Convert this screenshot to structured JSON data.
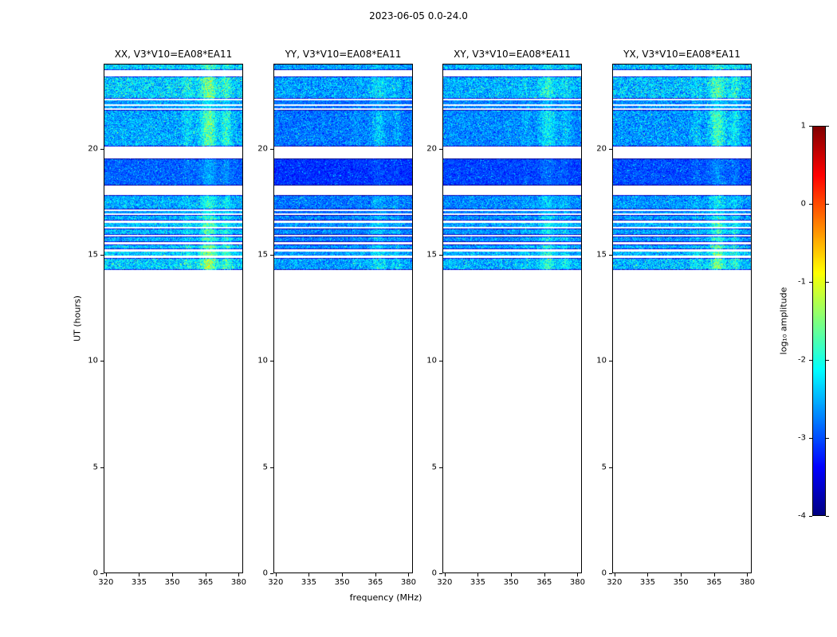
{
  "figure": {
    "title": "2023-06-05 0.0-24.0"
  },
  "chart_data": {
    "type": "heatmap",
    "title": "2023-06-05 0.0-24.0",
    "xlabel": "frequency (MHz)",
    "ylabel": "UT (hours)",
    "xlim": [
      319,
      382
    ],
    "ylim": [
      0,
      24
    ],
    "xticks": [
      320,
      335,
      350,
      365,
      380
    ],
    "yticks": [
      0,
      5,
      10,
      15,
      20
    ],
    "panels": [
      {
        "title": "XX, V3*V10=EA08*EA11",
        "seed": 101,
        "level_offset": 0.1,
        "noise_scale": 1.0,
        "feature_scale": 1.0
      },
      {
        "title": "YY, V3*V10=EA08*EA11",
        "seed": 202,
        "level_offset": -0.15,
        "noise_scale": 0.85,
        "feature_scale": 0.45
      },
      {
        "title": "XY, V3*V10=EA08*EA11",
        "seed": 303,
        "level_offset": -0.05,
        "noise_scale": 0.9,
        "feature_scale": 0.6
      },
      {
        "title": "YX, V3*V10=EA08*EA11",
        "seed": 404,
        "level_offset": 0.0,
        "noise_scale": 1.0,
        "feature_scale": 0.9
      }
    ],
    "time_bands": [
      {
        "t0": 23.7,
        "t1": 24.0,
        "level": -2.45,
        "noise": 0.85,
        "feat": 0.5
      },
      {
        "t0": 22.35,
        "t1": 23.4,
        "level": -2.45,
        "noise": 0.9,
        "feat": 0.8
      },
      {
        "t0": 22.1,
        "t1": 22.28,
        "level": -2.7,
        "noise": 0.6,
        "feat": 0.4
      },
      {
        "t0": 21.9,
        "t1": 22.03,
        "level": -2.7,
        "noise": 0.6,
        "feat": 0.4
      },
      {
        "t0": 20.1,
        "t1": 21.83,
        "level": -2.65,
        "noise": 0.75,
        "feat": 0.9
      },
      {
        "t0": 18.28,
        "t1": 19.52,
        "level": -3.0,
        "noise": 0.5,
        "feat": 0.35
      },
      {
        "t0": 17.15,
        "t1": 17.82,
        "level": -2.65,
        "noise": 0.7,
        "feat": 0.6
      },
      {
        "t0": 16.95,
        "t1": 17.08,
        "level": -2.7,
        "noise": 0.6,
        "feat": 0.5
      },
      {
        "t0": 16.62,
        "t1": 16.88,
        "level": -2.6,
        "noise": 0.7,
        "feat": 0.7
      },
      {
        "t0": 16.3,
        "t1": 16.5,
        "level": -2.55,
        "noise": 0.7,
        "feat": 0.8
      },
      {
        "t0": 15.95,
        "t1": 16.22,
        "level": -2.6,
        "noise": 0.7,
        "feat": 0.85
      },
      {
        "t0": 15.6,
        "t1": 15.85,
        "level": -2.6,
        "noise": 0.7,
        "feat": 0.85
      },
      {
        "t0": 15.25,
        "t1": 15.5,
        "level": -2.5,
        "noise": 0.75,
        "feat": 1.0
      },
      {
        "t0": 14.95,
        "t1": 15.15,
        "level": -2.5,
        "noise": 0.75,
        "feat": 1.0
      },
      {
        "t0": 14.3,
        "t1": 14.85,
        "level": -2.45,
        "noise": 0.85,
        "feat": 1.0
      }
    ],
    "rfi_features": [
      {
        "center_mhz": 366.5,
        "sigma_mhz": 2.5,
        "amp": 1.0
      },
      {
        "center_mhz": 374.5,
        "sigma_mhz": 1.5,
        "amp": 0.6
      },
      {
        "center_mhz": 357.0,
        "sigma_mhz": 1.5,
        "amp": 0.3
      }
    ],
    "colorbar": {
      "label": "log₁₀ amplitude",
      "ticks": [
        1,
        0,
        -1,
        -2,
        -3,
        -4
      ],
      "vmin": -4,
      "vmax": 1,
      "colormap": "jet"
    }
  }
}
